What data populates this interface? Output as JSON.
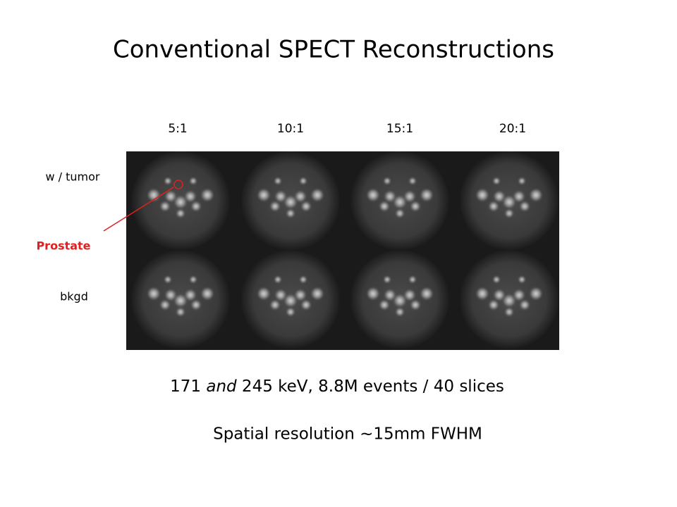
{
  "title": "Conventional SPECT Reconstructions",
  "columns": [
    "5:1",
    "10:1",
    "15:1",
    "20:1"
  ],
  "rows": [
    "w / tumor",
    "bkgd"
  ],
  "annotation": "Prostate",
  "caption": {
    "parts": [
      "171 ",
      "and",
      " 245 keV, 8.8M events / 40 slices"
    ]
  },
  "subcaption": "Spatial resolution ~15mm FWHM"
}
